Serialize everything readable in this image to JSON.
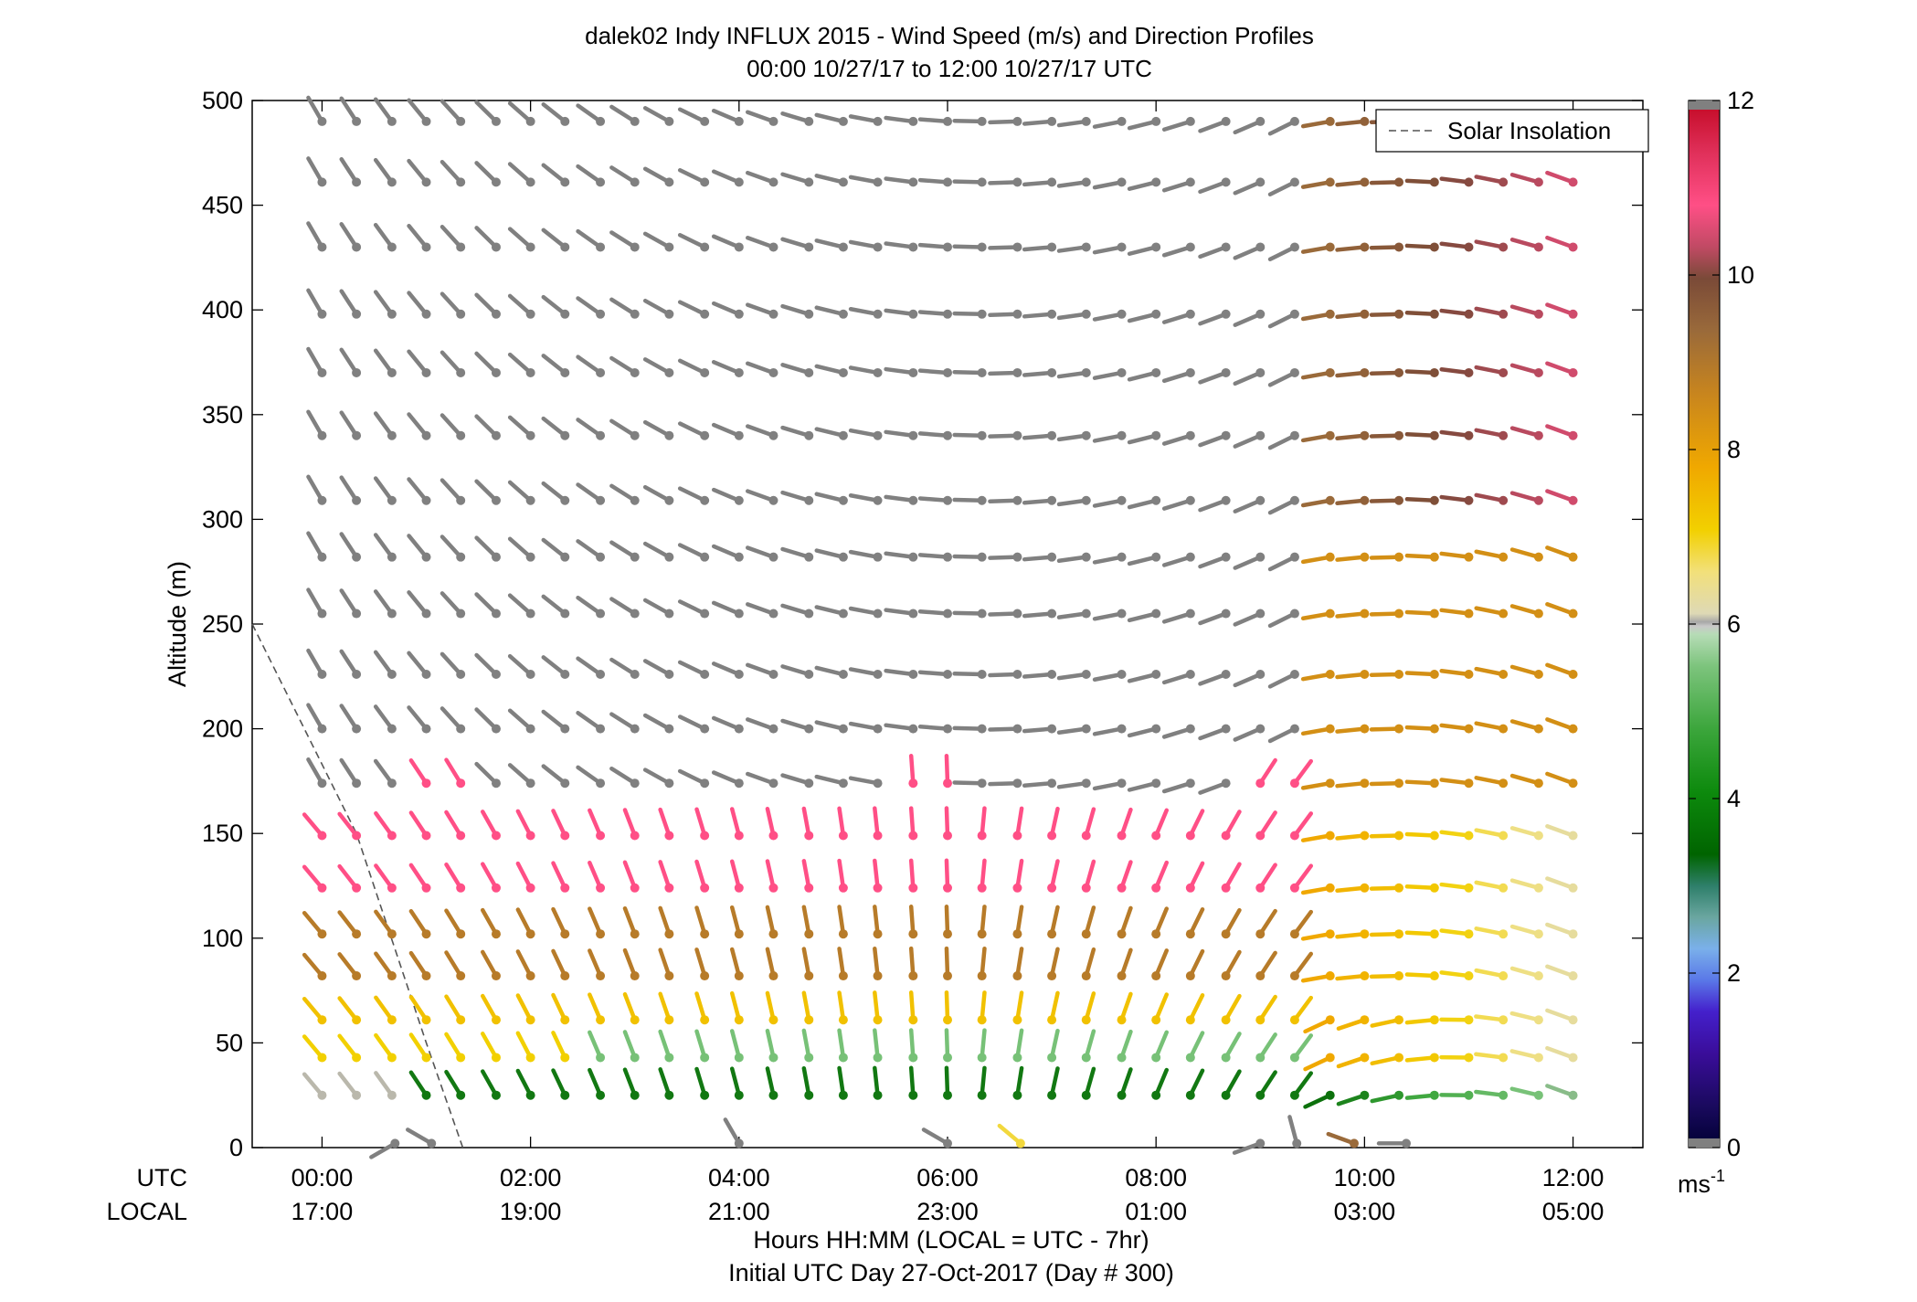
{
  "chart_data": {
    "type": "wind-barb-profile",
    "title": "dalek02 Indy INFLUX 2015 - Wind Speed (m/s) and Direction Profiles",
    "subtitle": "00:00 10/27/17 to 12:00 10/27/17  UTC",
    "xlabel": "Hours HH:MM  (LOCAL = UTC - 7hr)",
    "xlabel2": "Initial UTC Day 27-Oct-2017 (Day # 300)",
    "ylabel": "Altitude (m)",
    "x_row_label_utc": "UTC",
    "x_row_label_local": "LOCAL",
    "xlim_hours": [
      -0.67,
      12.67
    ],
    "ylim": [
      0,
      500
    ],
    "yticks": [
      0,
      50,
      100,
      150,
      200,
      250,
      300,
      350,
      400,
      450,
      500
    ],
    "xticks": [
      {
        "hour": 0,
        "utc": "00:00",
        "local": "17:00"
      },
      {
        "hour": 2,
        "utc": "02:00",
        "local": "19:00"
      },
      {
        "hour": 4,
        "utc": "04:00",
        "local": "21:00"
      },
      {
        "hour": 6,
        "utc": "06:00",
        "local": "23:00"
      },
      {
        "hour": 8,
        "utc": "08:00",
        "local": "01:00"
      },
      {
        "hour": 10,
        "utc": "10:00",
        "local": "03:00"
      },
      {
        "hour": 12,
        "utc": "12:00",
        "local": "05:00"
      }
    ],
    "legend": {
      "label": "Solar Insolation",
      "position": "top-right"
    },
    "solar_insolation": [
      [
        -0.67,
        250
      ],
      [
        0.33,
        150
      ],
      [
        1.0,
        50
      ],
      [
        1.35,
        0
      ]
    ],
    "colorbar": {
      "label": "ms",
      "label_sup": "-1",
      "ticks": [
        0,
        2,
        4,
        6,
        8,
        10,
        12
      ],
      "range": [
        0,
        12
      ]
    },
    "columns_hours": [
      0,
      0.33,
      0.67,
      1,
      1.33,
      1.67,
      2,
      2.33,
      2.67,
      3,
      3.33,
      3.67,
      4,
      4.33,
      4.67,
      5,
      5.33,
      5.67,
      6,
      6.33,
      6.67,
      7,
      7.33,
      7.67,
      8,
      8.33,
      8.67,
      9,
      9.33,
      9.67,
      10,
      10.33,
      10.67,
      11,
      11.33,
      11.67,
      12
    ],
    "levels_m": [
      25,
      43,
      61,
      82,
      102,
      124,
      149,
      174,
      200,
      226,
      255,
      282,
      309,
      340,
      370,
      398,
      430,
      461,
      490
    ],
    "profiles": [
      {
        "level": "25-61",
        "from_hour": 0,
        "to_hour": 6,
        "dir_deg": [
          315,
          0
        ],
        "speed_mps": [
          7,
          4
        ]
      },
      {
        "level": "102-149",
        "from_hour": 0,
        "to_hour": 6,
        "dir_deg": [
          315,
          0
        ],
        "speed_mps": [
          10.5,
          10
        ]
      },
      {
        "level": "200-490",
        "from_hour": 0,
        "to_hour": 9.5,
        "dir_deg": [
          330,
          240
        ],
        "speed_mps": [
          12,
          12
        ]
      },
      {
        "level": "all",
        "from_hour": 9.67,
        "to_hour": 12,
        "dir_deg": [
          260,
          290
        ],
        "speed_mps": [
          8,
          10
        ]
      }
    ],
    "surface_obs": [
      {
        "hour": 0.7,
        "dir_deg": 240,
        "speed_mps": 12
      },
      {
        "hour": 1.05,
        "dir_deg": 300,
        "speed_mps": 12
      },
      {
        "hour": 4.0,
        "dir_deg": 330,
        "speed_mps": 12
      },
      {
        "hour": 6.0,
        "dir_deg": 300,
        "speed_mps": 12
      },
      {
        "hour": 6.7,
        "dir_deg": 310,
        "speed_mps": 7
      },
      {
        "hour": 9.0,
        "dir_deg": 250,
        "speed_mps": 12
      },
      {
        "hour": 9.35,
        "dir_deg": 345,
        "speed_mps": 12
      },
      {
        "hour": 9.9,
        "dir_deg": 290,
        "speed_mps": 9.5
      },
      {
        "hour": 10.4,
        "dir_deg": 270,
        "speed_mps": 12
      }
    ]
  }
}
